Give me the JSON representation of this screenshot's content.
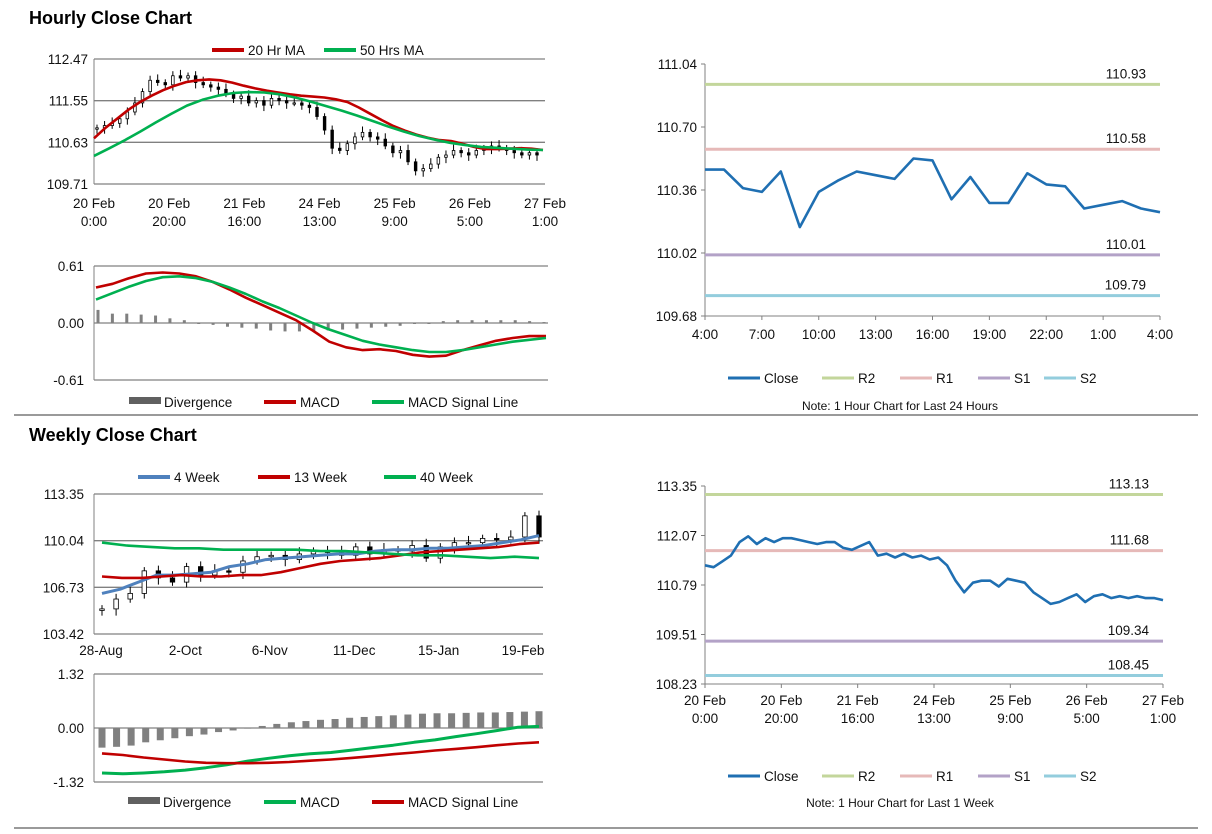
{
  "sections": {
    "hourly_title": "Hourly Close Chart",
    "weekly_title": "Weekly Close Chart"
  },
  "colors": {
    "ma_short": "#c00000",
    "ma_long": "#00b050",
    "ma_mid": "#c00000",
    "ma4": "#4f81bd",
    "close": "#1f6fb2",
    "r2": "#c3d69b",
    "r1": "#e6b9b8",
    "s1": "#b3a2c7",
    "s2": "#93cddd",
    "divergence": "#808080",
    "macd_red": "#c00000",
    "macd_green": "#00b050",
    "grid": "#808080"
  },
  "chart_data": [
    {
      "id": "hourly_price",
      "type": "candlestick",
      "title": "",
      "legend": [
        "20 Hr MA",
        "50 Hrs MA"
      ],
      "yticks": [
        "112.47",
        "111.55",
        "110.63",
        "109.71"
      ],
      "ylim": [
        109.71,
        112.47
      ],
      "xticks": [
        [
          "20 Feb",
          "0:00"
        ],
        [
          "20 Feb",
          "20:00"
        ],
        [
          "21 Feb",
          "16:00"
        ],
        [
          "24 Feb",
          "13:00"
        ],
        [
          "25 Feb",
          "9:00"
        ],
        [
          "26 Feb",
          "5:00"
        ],
        [
          "27 Feb",
          "1:00"
        ]
      ],
      "close": [
        110.95,
        111.0,
        111.05,
        111.15,
        111.3,
        111.5,
        111.75,
        112.0,
        111.95,
        111.9,
        112.1,
        112.05,
        112.1,
        111.95,
        111.9,
        111.85,
        111.8,
        111.7,
        111.6,
        111.65,
        111.5,
        111.55,
        111.45,
        111.6,
        111.55,
        111.5,
        111.5,
        111.45,
        111.4,
        111.2,
        110.9,
        110.5,
        110.45,
        110.6,
        110.75,
        110.85,
        110.75,
        110.7,
        110.55,
        110.4,
        110.45,
        110.2,
        110.0,
        110.05,
        110.15,
        110.3,
        110.35,
        110.45,
        110.4,
        110.35,
        110.45,
        110.5,
        110.55,
        110.5,
        110.45,
        110.4,
        110.35,
        110.4,
        110.35
      ],
      "ma20": [
        110.72,
        110.95,
        111.15,
        111.35,
        111.52,
        111.66,
        111.78,
        111.88,
        111.96,
        112.0,
        112.02,
        112.0,
        111.95,
        111.88,
        111.82,
        111.77,
        111.73,
        111.69,
        111.66,
        111.64,
        111.62,
        111.58,
        111.52,
        111.4,
        111.26,
        111.12,
        110.99,
        110.89,
        110.8,
        110.73,
        110.68,
        110.66,
        110.6,
        110.53,
        110.48,
        110.48,
        110.49,
        110.5,
        110.49,
        110.46
      ],
      "ma50": [
        110.33,
        110.5,
        110.68,
        110.87,
        111.07,
        111.26,
        111.44,
        111.57,
        111.66,
        111.72,
        111.74,
        111.73,
        111.69,
        111.62,
        111.53,
        111.43,
        111.33,
        111.22,
        111.1,
        110.98,
        110.87,
        110.77,
        110.69,
        110.62,
        110.57,
        110.53,
        110.51,
        110.49,
        110.47,
        110.46
      ]
    },
    {
      "id": "hourly_macd",
      "type": "bar+line",
      "legend": [
        "Divergence",
        "MACD",
        "MACD Signal Line"
      ],
      "yticks": [
        "0.61",
        "0.00",
        "-0.61"
      ],
      "ylim": [
        -0.61,
        0.61
      ],
      "macd": [
        0.38,
        0.42,
        0.48,
        0.53,
        0.54,
        0.53,
        0.5,
        0.44,
        0.36,
        0.27,
        0.19,
        0.11,
        0.03,
        -0.08,
        -0.2,
        -0.26,
        -0.29,
        -0.28,
        -0.3,
        -0.34,
        -0.36,
        -0.35,
        -0.29,
        -0.24,
        -0.19,
        -0.16,
        -0.14,
        -0.14
      ],
      "signal": [
        0.25,
        0.32,
        0.39,
        0.45,
        0.49,
        0.5,
        0.48,
        0.44,
        0.38,
        0.31,
        0.23,
        0.16,
        0.08,
        0.0,
        -0.07,
        -0.13,
        -0.19,
        -0.23,
        -0.26,
        -0.29,
        -0.31,
        -0.31,
        -0.29,
        -0.26,
        -0.23,
        -0.2,
        -0.18,
        -0.16
      ],
      "divergence": [
        0.14,
        0.1,
        0.1,
        0.09,
        0.08,
        0.05,
        0.03,
        0.0,
        -0.02,
        -0.04,
        -0.05,
        -0.06,
        -0.08,
        -0.09,
        -0.09,
        -0.09,
        -0.08,
        -0.07,
        -0.06,
        -0.05,
        -0.04,
        -0.03,
        -0.01,
        0.0,
        0.02,
        0.03,
        0.03,
        0.03,
        0.03,
        0.03,
        0.02,
        0.01
      ]
    },
    {
      "id": "hourly_close",
      "type": "line",
      "legend": [
        "Close",
        "R2",
        "R1",
        "S1",
        "S2"
      ],
      "note": "Note: 1 Hour Chart for Last 24 Hours",
      "yticks": [
        "111.04",
        "110.70",
        "110.36",
        "110.02",
        "109.68"
      ],
      "ylim": [
        109.68,
        111.04
      ],
      "xticks": [
        "4:00",
        "7:00",
        "10:00",
        "13:00",
        "16:00",
        "19:00",
        "22:00",
        "1:00",
        "4:00"
      ],
      "levels": {
        "R2": 110.93,
        "R1": 110.58,
        "S1": 110.01,
        "S2": 109.79
      },
      "level_labels": {
        "R2": "110.93",
        "R1": "110.58",
        "S1": "110.01",
        "S2": "109.79"
      },
      "close": [
        110.47,
        110.47,
        110.37,
        110.35,
        110.46,
        110.16,
        110.35,
        110.41,
        110.46,
        110.44,
        110.42,
        110.53,
        110.52,
        110.31,
        110.43,
        110.29,
        110.29,
        110.45,
        110.39,
        110.38,
        110.26,
        110.28,
        110.3,
        110.26,
        110.24
      ]
    },
    {
      "id": "weekly_price",
      "type": "candlestick",
      "legend": [
        "4 Week",
        "13 Week",
        "40 Week"
      ],
      "yticks": [
        "113.35",
        "110.04",
        "106.73",
        "103.42"
      ],
      "ylim": [
        103.42,
        113.35
      ],
      "xticks": [
        "28-Aug",
        "2-Oct",
        "6-Nov",
        "11-Dec",
        "15-Jan",
        "19-Feb"
      ],
      "close": [
        105.2,
        105.9,
        106.3,
        107.9,
        107.4,
        107.1,
        108.2,
        107.6,
        107.9,
        107.8,
        108.6,
        108.9,
        109.0,
        108.7,
        109.1,
        109.3,
        109.2,
        109.0,
        109.6,
        109.1,
        109.4,
        109.3,
        109.7,
        108.8,
        109.6,
        109.9,
        109.9,
        110.2,
        110.1,
        110.3,
        111.8,
        110.3
      ],
      "ma4": [
        106.3,
        106.6,
        107.1,
        107.6,
        107.6,
        107.7,
        107.8,
        108.2,
        108.4,
        108.7,
        108.8,
        108.9,
        109.0,
        109.1,
        109.1,
        109.3,
        109.4,
        109.4,
        109.5,
        109.5,
        109.6,
        109.7,
        109.9,
        110.1,
        110.4
      ],
      "ma13": [
        107.5,
        107.4,
        107.4,
        107.5,
        107.6,
        107.5,
        107.5,
        107.6,
        107.6,
        107.8,
        108.1,
        108.4,
        108.6,
        108.7,
        108.8,
        109.0,
        109.2,
        109.3,
        109.4,
        109.5,
        109.6,
        109.8,
        109.9
      ],
      "ma40": [
        109.9,
        109.7,
        109.6,
        109.5,
        109.5,
        109.4,
        109.4,
        109.4,
        109.4,
        109.3,
        109.3,
        109.2,
        109.1,
        109.0,
        109.0,
        108.9,
        108.8,
        108.9,
        108.8
      ]
    },
    {
      "id": "weekly_macd",
      "type": "bar+line",
      "legend": [
        "Divergence",
        "MACD",
        "MACD Signal Line"
      ],
      "yticks": [
        "1.32",
        "0.00",
        "-1.32"
      ],
      "ylim": [
        -1.32,
        1.32
      ],
      "macd": [
        -1.1,
        -1.12,
        -1.1,
        -1.07,
        -1.03,
        -0.97,
        -0.9,
        -0.81,
        -0.74,
        -0.68,
        -0.63,
        -0.6,
        -0.54,
        -0.48,
        -0.42,
        -0.35,
        -0.29,
        -0.21,
        -0.14,
        -0.06,
        0.02,
        0.04
      ],
      "signal": [
        -0.62,
        -0.66,
        -0.72,
        -0.77,
        -0.82,
        -0.85,
        -0.86,
        -0.86,
        -0.85,
        -0.83,
        -0.8,
        -0.77,
        -0.73,
        -0.69,
        -0.64,
        -0.6,
        -0.55,
        -0.51,
        -0.47,
        -0.42,
        -0.38,
        -0.35
      ],
      "divergence": [
        -0.48,
        -0.46,
        -0.43,
        -0.35,
        -0.3,
        -0.25,
        -0.2,
        -0.16,
        -0.1,
        -0.06,
        0.01,
        0.05,
        0.1,
        0.14,
        0.17,
        0.2,
        0.22,
        0.25,
        0.27,
        0.29,
        0.31,
        0.33,
        0.35,
        0.36,
        0.36,
        0.37,
        0.38,
        0.38,
        0.39,
        0.4,
        0.41
      ]
    },
    {
      "id": "weekly_close",
      "type": "line",
      "legend": [
        "Close",
        "R2",
        "R1",
        "S1",
        "S2"
      ],
      "note": "Note: 1 Hour Chart for Last 1 Week",
      "yticks": [
        "113.35",
        "112.07",
        "110.79",
        "109.51",
        "108.23"
      ],
      "ylim": [
        108.23,
        113.35
      ],
      "xticks": [
        [
          "20 Feb",
          "0:00"
        ],
        [
          "20 Feb",
          "20:00"
        ],
        [
          "21 Feb",
          "16:00"
        ],
        [
          "24 Feb",
          "13:00"
        ],
        [
          "25 Feb",
          "9:00"
        ],
        [
          "26 Feb",
          "5:00"
        ],
        [
          "27 Feb",
          "1:00"
        ]
      ],
      "levels": {
        "R2": 113.13,
        "R1": 111.68,
        "S1": 109.34,
        "S2": 108.45
      },
      "level_labels": {
        "R2": "113.13",
        "R1": "111.68",
        "S1": "109.34",
        "S2": "108.45"
      },
      "close": [
        111.3,
        111.25,
        111.4,
        111.55,
        111.9,
        112.05,
        111.85,
        112.0,
        111.9,
        112.0,
        112.0,
        111.95,
        111.9,
        111.85,
        111.9,
        111.9,
        111.75,
        111.7,
        111.8,
        111.9,
        111.55,
        111.6,
        111.5,
        111.6,
        111.5,
        111.55,
        111.45,
        111.5,
        111.3,
        110.9,
        110.6,
        110.85,
        110.9,
        110.9,
        110.75,
        110.95,
        110.9,
        110.85,
        110.6,
        110.45,
        110.3,
        110.35,
        110.45,
        110.55,
        110.35,
        110.5,
        110.55,
        110.45,
        110.5,
        110.45,
        110.5,
        110.45,
        110.45,
        110.4
      ]
    }
  ]
}
